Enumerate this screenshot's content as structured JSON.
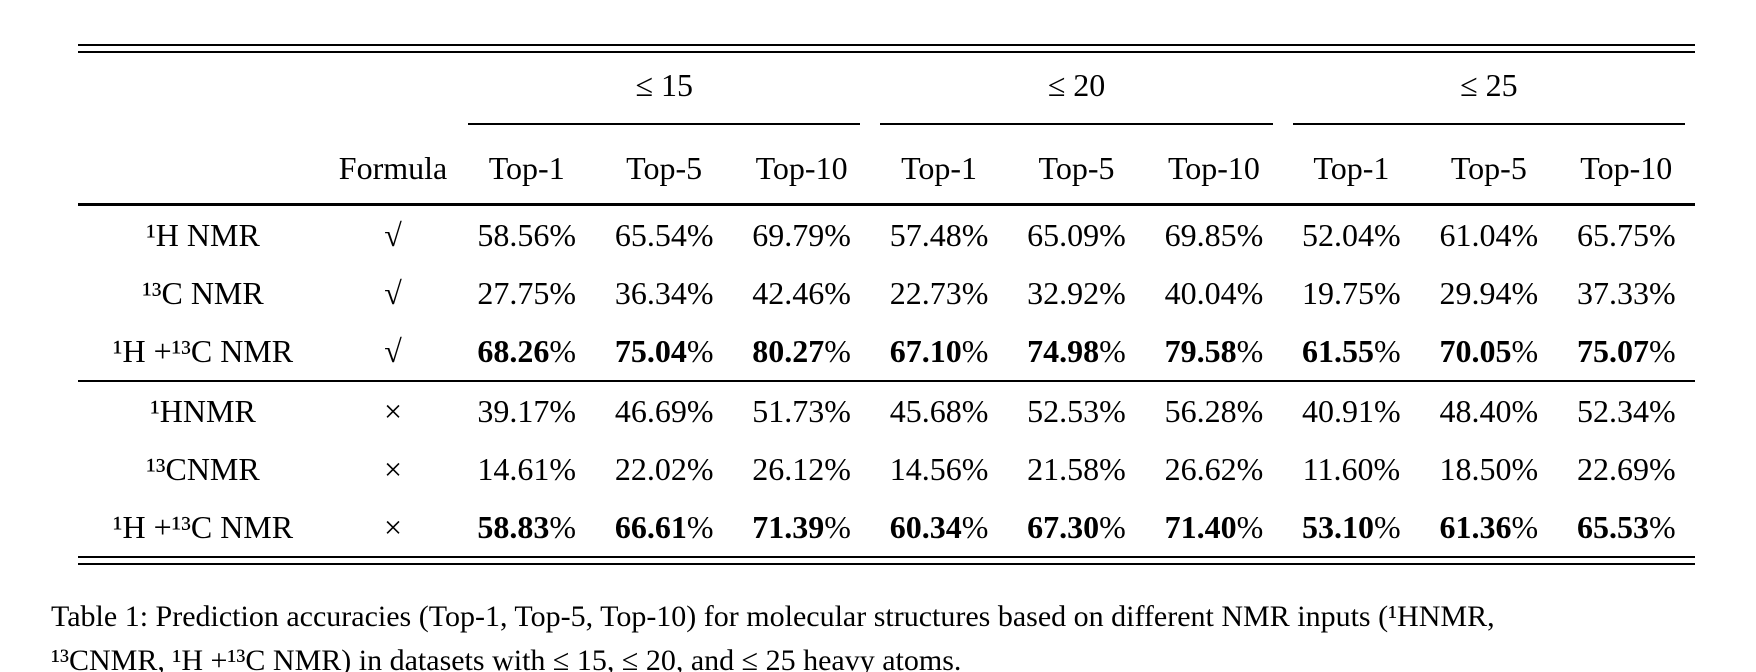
{
  "colors": {
    "text": "#000000",
    "background": "#ffffff"
  },
  "table": {
    "groups": [
      "≤ 15",
      "≤ 20",
      "≤ 25"
    ],
    "formula_header": "Formula",
    "column_headers": [
      "Top-1",
      "Top-5",
      "Top-10",
      "Top-1",
      "Top-5",
      "Top-10",
      "Top-1",
      "Top-5",
      "Top-10"
    ],
    "rows": [
      {
        "label": "¹H NMR",
        "formula": "√",
        "bold": false,
        "values": [
          "58.56%",
          "65.54%",
          "69.79%",
          "57.48%",
          "65.09%",
          "69.85%",
          "52.04%",
          "61.04%",
          "65.75%"
        ]
      },
      {
        "label": "¹³C NMR",
        "formula": "√",
        "bold": false,
        "values": [
          "27.75%",
          "36.34%",
          "42.46%",
          "22.73%",
          "32.92%",
          "40.04%",
          "19.75%",
          "29.94%",
          "37.33%"
        ]
      },
      {
        "label": "¹H +¹³C NMR",
        "formula": "√",
        "bold": true,
        "values": [
          "68.26%",
          "75.04%",
          "80.27%",
          "67.10%",
          "74.98%",
          "79.58%",
          "61.55%",
          "70.05%",
          "75.07%"
        ]
      },
      {
        "label": "¹HNMR",
        "formula": "×",
        "bold": false,
        "values": [
          "39.17%",
          "46.69%",
          "51.73%",
          "45.68%",
          "52.53%",
          "56.28%",
          "40.91%",
          "48.40%",
          "52.34%"
        ]
      },
      {
        "label": "¹³CNMR",
        "formula": "×",
        "bold": false,
        "values": [
          "14.61%",
          "22.02%",
          "26.12%",
          "14.56%",
          "21.58%",
          "26.62%",
          "11.60%",
          "18.50%",
          "22.69%"
        ]
      },
      {
        "label": "¹H +¹³C NMR",
        "formula": "×",
        "bold": true,
        "values": [
          "58.83%",
          "66.61%",
          "71.39%",
          "60.34%",
          "67.30%",
          "71.40%",
          "53.10%",
          "61.36%",
          "65.53%"
        ]
      }
    ]
  },
  "caption": {
    "lines": [
      "Table 1: Prediction accuracies (Top-1, Top-5, Top-10) for molecular structures based on different NMR inputs (¹HNMR,",
      "¹³CNMR, ¹H +¹³C NMR) in datasets with ≤ 15, ≤ 20, and ≤ 25 heavy atoms."
    ]
  }
}
